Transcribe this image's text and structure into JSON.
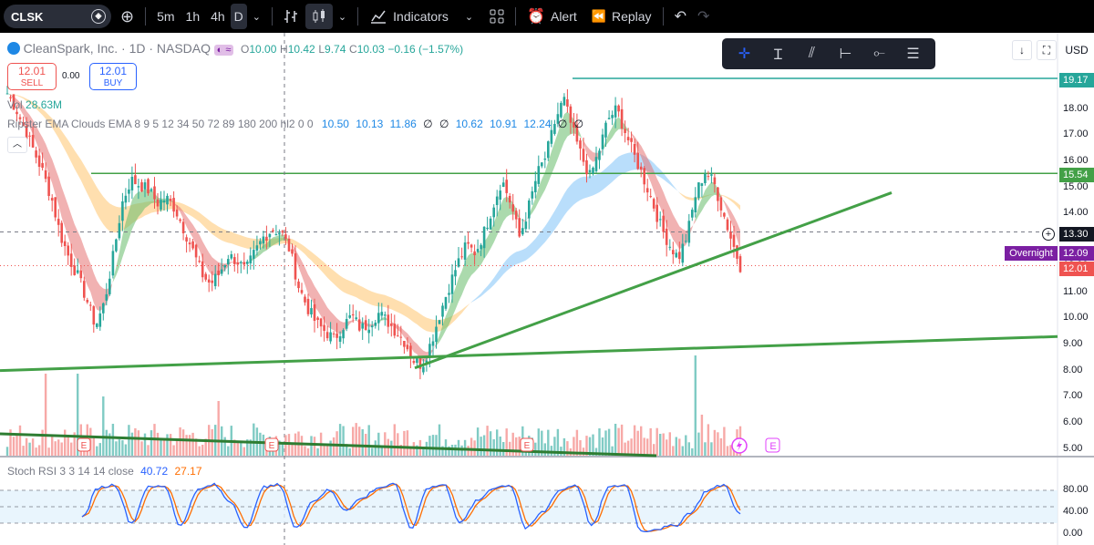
{
  "toolbar": {
    "symbol": "CLSK",
    "intervals": [
      "5m",
      "1h",
      "4h",
      "D"
    ],
    "indicators_label": "Indicators",
    "alert_label": "Alert",
    "replay_label": "Replay"
  },
  "legend": {
    "name": "CleanSpark, Inc. · 1D · NASDAQ",
    "o_label": "O",
    "o": "10.00",
    "h_label": "H",
    "h": "10.42",
    "l_label": "L",
    "l": "9.74",
    "c_label": "C",
    "c": "10.03",
    "change": "−0.16 (−1.57%)",
    "sell_price": "12.01",
    "sell_label": "SELL",
    "spread": "0.00",
    "buy_price": "12.01",
    "buy_label": "BUY",
    "volume": "28.63M",
    "volume_label": "Vol",
    "ema_name": "Ripster EMA Clouds EMA 8 9 5 12 34 50 72 89 180 200 hl2 0 0",
    "ema_values": [
      "10.50",
      "10.13",
      "11.86",
      "∅",
      "∅",
      "10.62",
      "10.91",
      "12.24",
      "∅",
      "∅"
    ]
  },
  "right_toolbar": {
    "currency": "USD"
  },
  "price_axis": {
    "ticks": [
      "19.00",
      "18.00",
      "17.00",
      "16.00",
      "15.00",
      "14.00",
      "13.00",
      "12.00",
      "11.00",
      "10.00",
      "9.00",
      "8.00",
      "7.00",
      "6.00",
      "5.00"
    ],
    "badges": [
      {
        "label": "19.17",
        "color": "#26a69a"
      },
      {
        "label": "15.54",
        "color": "#43a047"
      },
      {
        "label": "13.30",
        "color": "#131722"
      },
      {
        "label": "12.09",
        "color": "#7b1fa2"
      },
      {
        "label": "12.01",
        "color": "#ef5350"
      }
    ],
    "overnight_label": "Overnight"
  },
  "rsi": {
    "name": "Stoch RSI 3 3 14 14 close",
    "k_value": "40.72",
    "d_value": "27.17",
    "ticks": [
      "80.00",
      "40.00",
      "0.00"
    ],
    "k_color": "#2962ff",
    "d_color": "#ff6d00"
  },
  "colors": {
    "up": "#26a69a",
    "down": "#ef5350",
    "trendline": "#43a047"
  },
  "events": {
    "earnings_label": "E"
  },
  "chart_data": {
    "type": "candlestick",
    "symbol": "CLSK",
    "timeframe": "1D",
    "ylim": [
      5,
      19.3
    ],
    "horizontal_lines": [
      19.17,
      15.54
    ],
    "crosshair_price": 13.3,
    "overnight_price": 12.09,
    "last_price": 12.01,
    "close_path": [
      18.6,
      18.0,
      17.2,
      16.4,
      15.6,
      14.6,
      13.2,
      12.3,
      11.6,
      10.7,
      9.7,
      10.6,
      12.4,
      14.4,
      15.3,
      15.1,
      14.9,
      14.4,
      14.6,
      14.2,
      13.4,
      12.6,
      11.7,
      11.3,
      11.7,
      12.4,
      12.2,
      11.8,
      12.5,
      13.1,
      13.4,
      13.3,
      12.6,
      11.2,
      10.4,
      9.8,
      9.5,
      9.2,
      9.7,
      10.1,
      9.6,
      9.8,
      10.2,
      9.9,
      9.5,
      9.1,
      8.4,
      8.2,
      9.1,
      10.2,
      11.2,
      12.1,
      12.8,
      12.5,
      13.3,
      14.3,
      15.3,
      14.4,
      13.1,
      14.2,
      15.5,
      16.2,
      17.5,
      18.4,
      17.2,
      16.2,
      15.4,
      16.4,
      17.6,
      18.0,
      17.1,
      16.2,
      15.4,
      14.5,
      13.5,
      12.8,
      12.3,
      13.2,
      14.8,
      15.6,
      15.2,
      14.1,
      13.0,
      12.0
    ],
    "trendlines": [
      {
        "from": [
          0,
          8.0
        ],
        "to": [
          1160,
          9.3
        ]
      },
      {
        "from": [
          455,
          8.1
        ],
        "to": [
          978,
          14.8
        ]
      }
    ]
  }
}
